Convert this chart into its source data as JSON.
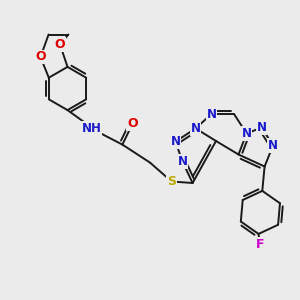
{
  "bg_color": "#ebebeb",
  "bond_color": "#1a1a1a",
  "bond_width": 1.4,
  "atom_colors": {
    "O": "#dd0000",
    "N": "#1a1acc",
    "S": "#bbaa00",
    "F": "#cc00cc",
    "H": "#008888",
    "C": "#1a1a1a"
  }
}
